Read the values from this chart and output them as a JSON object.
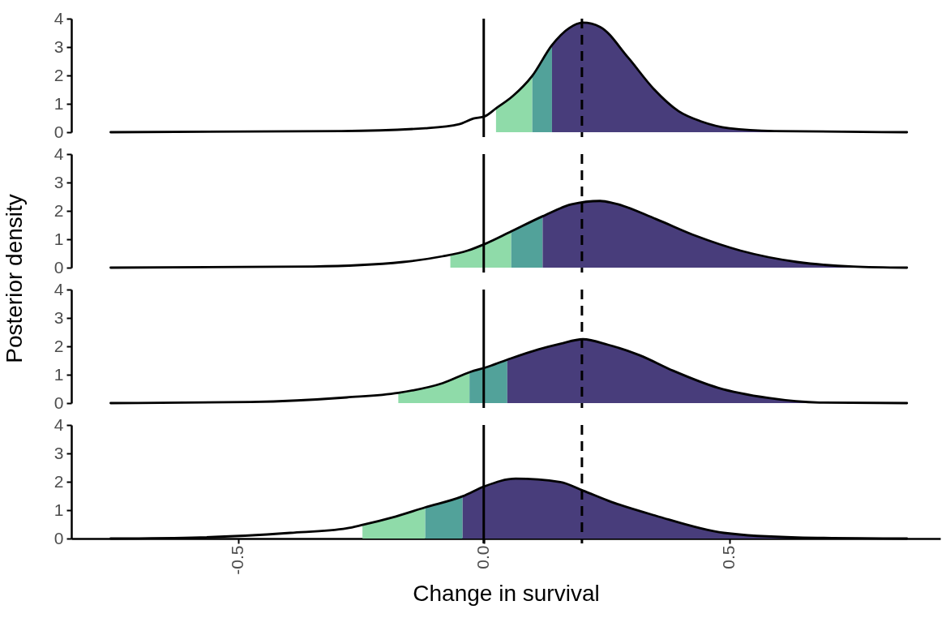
{
  "chart_data": [
    {
      "type": "line",
      "ylabel": "Posterior density",
      "xlim": [
        -0.84,
        0.93
      ],
      "ylim": [
        0,
        4
      ],
      "yticks": [
        0,
        1,
        2,
        3,
        4
      ],
      "tick_labels": "y",
      "grid": false,
      "ref_lines": [
        {
          "axis": "x",
          "value": 0,
          "line_style": "solid",
          "color": "#000000"
        },
        {
          "axis": "x",
          "value": 0.2,
          "line_style": "dashed",
          "color": "#000000"
        }
      ],
      "series": [
        {
          "type": "area",
          "color": "#8fdba9",
          "x": [
            0.025,
            0.059,
            0.099
          ],
          "values": [
            0.84,
            1.27,
            1.99
          ]
        },
        {
          "type": "area",
          "color": "#52a29a",
          "x": [
            0.099,
            0.139
          ],
          "values": [
            1.99,
            3.07
          ]
        },
        {
          "type": "area",
          "color": "#483d7b",
          "x": [
            0.139,
            0.174,
            0.202,
            0.237,
            0.294,
            0.346,
            0.397,
            0.443,
            0.5,
            0.592,
            0.862
          ],
          "values": [
            3.07,
            3.67,
            3.86,
            3.71,
            2.63,
            1.53,
            0.74,
            0.38,
            0.14,
            0.04,
            0
          ]
        },
        {
          "type": "line",
          "color": "#000000",
          "x": [
            -0.76,
            -0.29,
            -0.119,
            -0.05,
            -0.021,
            0.002,
            0.025,
            0.059,
            0.099,
            0.139,
            0.174,
            0.202,
            0.237,
            0.294,
            0.346,
            0.397,
            0.443,
            0.5,
            0.592,
            0.862
          ],
          "values": [
            0,
            0.04,
            0.14,
            0.28,
            0.48,
            0.56,
            0.84,
            1.27,
            1.99,
            3.07,
            3.67,
            3.86,
            3.71,
            2.63,
            1.53,
            0.74,
            0.38,
            0.14,
            0.04,
            0
          ]
        }
      ]
    },
    {
      "type": "line",
      "xlim": [
        -0.84,
        0.93
      ],
      "ylim": [
        0,
        4
      ],
      "yticks": [
        0,
        1,
        2,
        3,
        4
      ],
      "tick_labels": "y",
      "grid": false,
      "ref_lines": [
        {
          "axis": "x",
          "value": 0,
          "line_style": "solid",
          "color": "#000000"
        },
        {
          "axis": "x",
          "value": 0.2,
          "line_style": "dashed",
          "color": "#000000"
        }
      ],
      "series": [
        {
          "type": "area",
          "color": "#8fdba9",
          "x": [
            -0.068,
            -0.033,
            0.003,
            0.056
          ],
          "values": [
            0.47,
            0.6,
            0.84,
            1.3
          ]
        },
        {
          "type": "area",
          "color": "#52a29a",
          "x": [
            0.056,
            0.12
          ],
          "values": [
            1.3,
            1.81
          ]
        },
        {
          "type": "area",
          "color": "#483d7b",
          "x": [
            0.12,
            0.179,
            0.237,
            0.265,
            0.351,
            0.432,
            0.523,
            0.638,
            0.752,
            0.862
          ],
          "values": [
            1.81,
            2.23,
            2.35,
            2.27,
            1.71,
            1.12,
            0.6,
            0.2,
            0.04,
            0
          ]
        },
        {
          "type": "line",
          "color": "#000000",
          "x": [
            -0.76,
            -0.348,
            -0.164,
            -0.084,
            -0.033,
            0.003,
            0.053,
            0.12,
            0.179,
            0.237,
            0.265,
            0.351,
            0.432,
            0.523,
            0.638,
            0.752,
            0.862
          ],
          "values": [
            0,
            0.04,
            0.2,
            0.4,
            0.6,
            0.84,
            1.25,
            1.81,
            2.23,
            2.35,
            2.27,
            1.71,
            1.12,
            0.6,
            0.2,
            0.04,
            0
          ]
        }
      ]
    },
    {
      "type": "line",
      "xlim": [
        -0.84,
        0.93
      ],
      "ylim": [
        0,
        4
      ],
      "yticks": [
        0,
        1,
        2,
        3,
        4
      ],
      "tick_labels": "y",
      "grid": false,
      "ref_lines": [
        {
          "axis": "x",
          "value": 0,
          "line_style": "solid",
          "color": "#000000"
        },
        {
          "axis": "x",
          "value": 0.2,
          "line_style": "dashed",
          "color": "#000000"
        }
      ],
      "series": [
        {
          "type": "area",
          "color": "#8fdba9",
          "x": [
            -0.174,
            -0.084,
            -0.029
          ],
          "values": [
            0.36,
            0.7,
            1.08
          ]
        },
        {
          "type": "area",
          "color": "#52a29a",
          "x": [
            -0.029,
            0.003,
            0.048
          ],
          "values": [
            1.08,
            1.25,
            1.53
          ]
        },
        {
          "type": "area",
          "color": "#483d7b",
          "x": [
            0.048,
            0.111,
            0.156,
            0.202,
            0.254,
            0.317,
            0.386,
            0.477,
            0.58,
            0.684,
            0.862
          ],
          "values": [
            1.53,
            1.89,
            2.09,
            2.25,
            2.05,
            1.69,
            1.14,
            0.54,
            0.18,
            0.02,
            0
          ]
        },
        {
          "type": "line",
          "color": "#000000",
          "x": [
            -0.76,
            -0.474,
            -0.279,
            -0.174,
            -0.084,
            -0.027,
            0.003,
            0.048,
            0.111,
            0.156,
            0.202,
            0.254,
            0.317,
            0.386,
            0.477,
            0.58,
            0.684,
            0.862
          ],
          "values": [
            0,
            0.04,
            0.2,
            0.36,
            0.7,
            1.1,
            1.25,
            1.53,
            1.89,
            2.09,
            2.25,
            2.05,
            1.69,
            1.14,
            0.54,
            0.18,
            0.02,
            0
          ]
        }
      ]
    },
    {
      "type": "line",
      "xlabel": "Change in survival",
      "xlim": [
        -0.84,
        0.93
      ],
      "xticks": [
        {
          "value": -0.5,
          "label": "-0.5"
        },
        {
          "value": 0,
          "label": "0.0"
        },
        0.5
      ],
      "ylim": [
        0,
        4
      ],
      "yticks": [
        0,
        1,
        2,
        3,
        4
      ],
      "grid": false,
      "ref_lines": [
        {
          "axis": "x",
          "value": 0,
          "line_style": "solid",
          "color": "#000000"
        },
        {
          "axis": "x",
          "value": 0.2,
          "line_style": "dashed",
          "color": "#000000"
        }
      ],
      "series": [
        {
          "type": "area",
          "color": "#8fdba9",
          "x": [
            -0.247,
            -0.187,
            -0.119
          ],
          "values": [
            0.48,
            0.74,
            1.1
          ]
        },
        {
          "type": "area",
          "color": "#52a29a",
          "x": [
            -0.119,
            -0.043
          ],
          "values": [
            1.1,
            1.49
          ]
        },
        {
          "type": "area",
          "color": "#483d7b",
          "x": [
            -0.043,
            0.003,
            0.065,
            0.156,
            0.202,
            0.26,
            0.351,
            0.489,
            0.638,
            0.862
          ],
          "values": [
            1.49,
            1.85,
            2.11,
            1.99,
            1.69,
            1.29,
            0.8,
            0.2,
            0.04,
            0
          ]
        },
        {
          "type": "line",
          "color": "#000000",
          "x": [
            -0.76,
            -0.577,
            -0.394,
            -0.279,
            -0.247,
            -0.187,
            -0.119,
            -0.043,
            0.003,
            0.065,
            0.156,
            0.202,
            0.26,
            0.351,
            0.489,
            0.638,
            0.862
          ],
          "values": [
            0,
            0.04,
            0.2,
            0.36,
            0.48,
            0.74,
            1.1,
            1.49,
            1.85,
            2.11,
            1.99,
            1.69,
            1.29,
            0.8,
            0.2,
            0.04,
            0
          ]
        }
      ]
    }
  ]
}
